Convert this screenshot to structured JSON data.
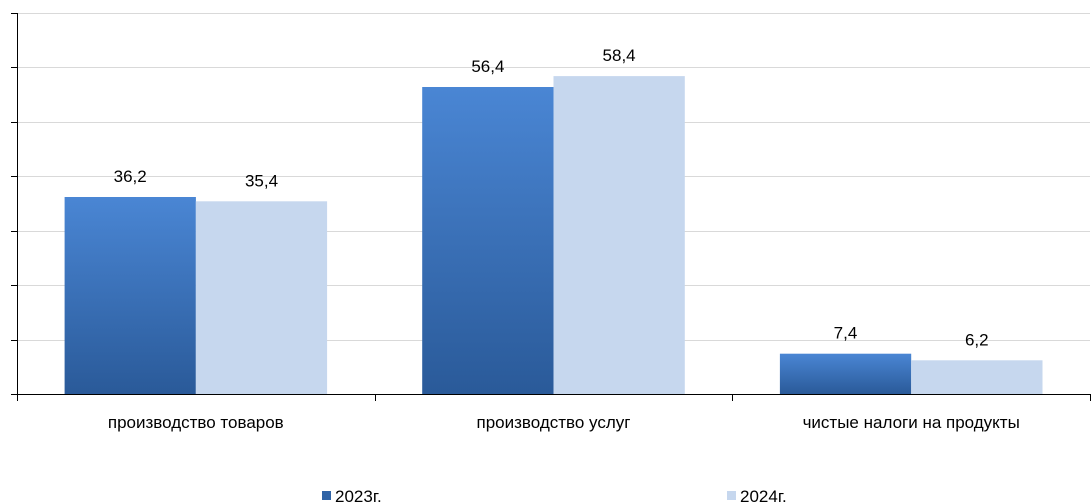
{
  "chart_data": {
    "type": "bar",
    "categories": [
      "производство товаров",
      "производство услуг",
      "чистые налоги на продукты"
    ],
    "series": [
      {
        "name": "2023г.",
        "values": [
          36.2,
          56.4,
          7.4
        ],
        "labels": [
          "36,2",
          "56,4",
          "7,4"
        ],
        "color": "#2f63a6",
        "color_light": "#4a86d4"
      },
      {
        "name": "2024г.",
        "values": [
          35.4,
          58.4,
          6.2
        ],
        "labels": [
          "35,4",
          "58,4",
          "6,2"
        ],
        "color": "#c6d7ee"
      }
    ],
    "ylim": [
      0,
      70
    ],
    "ytick_step": 10,
    "grid": true,
    "legend": "bottom",
    "title": "",
    "xlabel": "",
    "ylabel": ""
  }
}
